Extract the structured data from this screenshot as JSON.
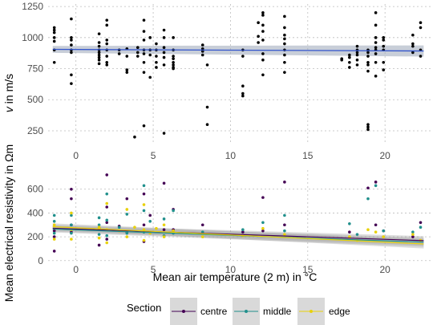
{
  "chart_data": [
    {
      "type": "scatter",
      "panel": "top",
      "ylabel_prefix": "v",
      "ylabel_suffix": " in m/s",
      "x_ticks": [
        0,
        5,
        10,
        15,
        20
      ],
      "y_ticks": [
        250,
        500,
        750,
        1000,
        1250
      ],
      "xlim": [
        -1.8,
        23.0
      ],
      "ylim": [
        140,
        1270
      ],
      "grid": true,
      "point_color": "#000000",
      "trend": {
        "x": [
          -1.5,
          22.5
        ],
        "y": [
          905,
          892
        ],
        "color": "#3355cc",
        "band_color": "#9aa6b8"
      },
      "points": [
        [
          -1.4,
          1080
        ],
        [
          -1.4,
          1060
        ],
        [
          -1.4,
          1040
        ],
        [
          -1.4,
          1000
        ],
        [
          -1.4,
          970
        ],
        [
          -1.4,
          900
        ],
        [
          -1.4,
          800
        ],
        [
          -0.3,
          1150
        ],
        [
          -0.3,
          1000
        ],
        [
          -0.3,
          980
        ],
        [
          -0.3,
          940
        ],
        [
          -0.3,
          900
        ],
        [
          -0.3,
          880
        ],
        [
          -0.3,
          700
        ],
        [
          -0.3,
          630
        ],
        [
          1.5,
          1030
        ],
        [
          1.5,
          960
        ],
        [
          1.5,
          930
        ],
        [
          1.5,
          900
        ],
        [
          1.5,
          880
        ],
        [
          1.5,
          860
        ],
        [
          1.5,
          840
        ],
        [
          1.5,
          820
        ],
        [
          1.5,
          790
        ],
        [
          2.0,
          1140
        ],
        [
          2.0,
          1100
        ],
        [
          2.0,
          980
        ],
        [
          2.0,
          950
        ],
        [
          2.0,
          900
        ],
        [
          2.0,
          850
        ],
        [
          2.0,
          800
        ],
        [
          2.0,
          780
        ],
        [
          2.8,
          900
        ],
        [
          2.8,
          870
        ],
        [
          3.3,
          910
        ],
        [
          3.3,
          850
        ],
        [
          3.3,
          740
        ],
        [
          3.3,
          720
        ],
        [
          3.8,
          200
        ],
        [
          4.0,
          920
        ],
        [
          4.0,
          880
        ],
        [
          4.0,
          850
        ],
        [
          4.4,
          1140
        ],
        [
          4.4,
          1050
        ],
        [
          4.4,
          980
        ],
        [
          4.4,
          900
        ],
        [
          4.4,
          870
        ],
        [
          4.4,
          800
        ],
        [
          4.4,
          720
        ],
        [
          4.4,
          290
        ],
        [
          4.8,
          1000
        ],
        [
          4.8,
          900
        ],
        [
          4.8,
          860
        ],
        [
          4.8,
          680
        ],
        [
          5.2,
          950
        ],
        [
          5.2,
          900
        ],
        [
          5.2,
          850
        ],
        [
          5.2,
          800
        ],
        [
          5.2,
          760
        ],
        [
          5.7,
          1060
        ],
        [
          5.7,
          1000
        ],
        [
          5.7,
          920
        ],
        [
          5.7,
          880
        ],
        [
          5.7,
          840
        ],
        [
          5.7,
          780
        ],
        [
          5.7,
          230
        ],
        [
          6.3,
          1000
        ],
        [
          6.3,
          900
        ],
        [
          6.3,
          850
        ],
        [
          6.3,
          830
        ],
        [
          6.3,
          800
        ],
        [
          6.3,
          780
        ],
        [
          6.3,
          760
        ],
        [
          6.3,
          750
        ],
        [
          8.2,
          940
        ],
        [
          8.2,
          910
        ],
        [
          8.2,
          890
        ],
        [
          8.2,
          860
        ],
        [
          8.5,
          780
        ],
        [
          8.5,
          440
        ],
        [
          8.5,
          300
        ],
        [
          10.8,
          900
        ],
        [
          10.8,
          850
        ],
        [
          10.8,
          610
        ],
        [
          10.8,
          550
        ],
        [
          10.8,
          530
        ],
        [
          11.8,
          1120
        ],
        [
          11.8,
          1010
        ],
        [
          11.8,
          960
        ],
        [
          12.1,
          1200
        ],
        [
          12.1,
          1180
        ],
        [
          12.1,
          1100
        ],
        [
          12.1,
          1050
        ],
        [
          12.1,
          980
        ],
        [
          12.1,
          870
        ],
        [
          12.1,
          820
        ],
        [
          12.1,
          700
        ],
        [
          13.5,
          1170
        ],
        [
          13.5,
          1080
        ],
        [
          13.5,
          1020
        ],
        [
          13.5,
          990
        ],
        [
          13.5,
          950
        ],
        [
          13.5,
          900
        ],
        [
          13.5,
          860
        ],
        [
          13.5,
          800
        ],
        [
          13.5,
          720
        ],
        [
          17.2,
          830
        ],
        [
          17.2,
          820
        ],
        [
          17.7,
          860
        ],
        [
          17.7,
          840
        ],
        [
          17.7,
          800
        ],
        [
          17.7,
          760
        ],
        [
          18.2,
          930
        ],
        [
          18.2,
          900
        ],
        [
          18.2,
          880
        ],
        [
          18.2,
          860
        ],
        [
          18.2,
          820
        ],
        [
          18.2,
          780
        ],
        [
          18.9,
          900
        ],
        [
          18.9,
          880
        ],
        [
          18.9,
          850
        ],
        [
          18.9,
          800
        ],
        [
          18.9,
          780
        ],
        [
          18.9,
          730
        ],
        [
          18.9,
          300
        ],
        [
          18.9,
          280
        ],
        [
          18.9,
          260
        ],
        [
          19.4,
          1200
        ],
        [
          19.4,
          1100
        ],
        [
          19.4,
          1000
        ],
        [
          19.4,
          960
        ],
        [
          19.4,
          920
        ],
        [
          19.4,
          900
        ],
        [
          19.4,
          870
        ],
        [
          19.4,
          800
        ],
        [
          19.4,
          690
        ],
        [
          19.9,
          1000
        ],
        [
          19.9,
          980
        ],
        [
          19.9,
          930
        ],
        [
          19.9,
          900
        ],
        [
          19.9,
          800
        ],
        [
          19.9,
          740
        ],
        [
          21.8,
          1020
        ],
        [
          21.8,
          950
        ],
        [
          21.8,
          930
        ],
        [
          21.8,
          880
        ],
        [
          22.3,
          1120
        ],
        [
          22.3,
          1080
        ],
        [
          22.3,
          900
        ],
        [
          22.3,
          850
        ]
      ]
    },
    {
      "type": "scatter",
      "panel": "bottom",
      "ylabel": "Mean electrical resistivity in Ωm",
      "xlabel": "Mean air temperature (2 m) in °C",
      "x_ticks": [
        0,
        5,
        10,
        15,
        20
      ],
      "y_ticks": [
        0,
        200,
        400,
        600
      ],
      "xlim": [
        -1.8,
        23.0
      ],
      "ylim": [
        -15,
        760
      ],
      "grid": true,
      "series": [
        {
          "name": "centre",
          "color": "#440154",
          "trend": {
            "x": [
              -1.5,
              22.5
            ],
            "y": [
              272,
              168
            ]
          },
          "points": [
            [
              -1.4,
              250
            ],
            [
              -1.4,
              200
            ],
            [
              -1.4,
              80
            ],
            [
              -0.3,
              600
            ],
            [
              -0.3,
              520
            ],
            [
              -0.3,
              300
            ],
            [
              -0.3,
              240
            ],
            [
              1.5,
              270
            ],
            [
              1.5,
              130
            ],
            [
              2.0,
              720
            ],
            [
              2.0,
              450
            ],
            [
              2.0,
              320
            ],
            [
              2.0,
              180
            ],
            [
              2.8,
              290
            ],
            [
              3.3,
              520
            ],
            [
              3.3,
              240
            ],
            [
              4.4,
              560
            ],
            [
              4.4,
              300
            ],
            [
              4.4,
              160
            ],
            [
              4.8,
              380
            ],
            [
              5.7,
              650
            ],
            [
              5.7,
              260
            ],
            [
              6.3,
              430
            ],
            [
              6.3,
              260
            ],
            [
              8.2,
              300
            ],
            [
              10.8,
              240
            ],
            [
              12.1,
              530
            ],
            [
              12.1,
              250
            ],
            [
              13.5,
              660
            ],
            [
              13.5,
              300
            ],
            [
              17.7,
              240
            ],
            [
              18.9,
              610
            ],
            [
              19.4,
              660
            ],
            [
              19.4,
              300
            ],
            [
              19.9,
              250
            ],
            [
              21.8,
              200
            ],
            [
              22.3,
              320
            ]
          ]
        },
        {
          "name": "middle",
          "color": "#21908c",
          "trend": {
            "x": [
              -1.5,
              22.5
            ],
            "y": [
              265,
              155
            ]
          },
          "points": [
            [
              -1.4,
              380
            ],
            [
              -1.4,
              330
            ],
            [
              -1.4,
              230
            ],
            [
              -0.3,
              380
            ],
            [
              -0.3,
              300
            ],
            [
              -0.3,
              230
            ],
            [
              1.5,
              360
            ],
            [
              1.5,
              300
            ],
            [
              1.5,
              220
            ],
            [
              2.0,
              560
            ],
            [
              2.0,
              340
            ],
            [
              2.0,
              210
            ],
            [
              2.8,
              280
            ],
            [
              3.3,
              390
            ],
            [
              3.3,
              230
            ],
            [
              4.4,
              630
            ],
            [
              4.4,
              420
            ],
            [
              4.4,
              240
            ],
            [
              4.8,
              330
            ],
            [
              5.7,
              350
            ],
            [
              5.7,
              210
            ],
            [
              6.3,
              420
            ],
            [
              6.3,
              230
            ],
            [
              8.2,
              240
            ],
            [
              10.8,
              260
            ],
            [
              12.1,
              320
            ],
            [
              13.5,
              380
            ],
            [
              13.5,
              250
            ],
            [
              17.7,
              310
            ],
            [
              18.2,
              220
            ],
            [
              18.9,
              520
            ],
            [
              19.4,
              630
            ],
            [
              19.9,
              250
            ],
            [
              21.8,
              240
            ],
            [
              22.3,
              280
            ]
          ]
        },
        {
          "name": "edge",
          "color": "#e8d10a",
          "trend": {
            "x": [
              -1.5,
              22.5
            ],
            "y": [
              285,
              140
            ]
          },
          "points": [
            [
              -1.4,
              300
            ],
            [
              -1.4,
              180
            ],
            [
              -0.3,
              400
            ],
            [
              -0.3,
              260
            ],
            [
              -0.3,
              180
            ],
            [
              1.5,
              280
            ],
            [
              1.5,
              190
            ],
            [
              2.0,
              480
            ],
            [
              2.0,
              260
            ],
            [
              2.0,
              150
            ],
            [
              2.8,
              250
            ],
            [
              3.3,
              430
            ],
            [
              3.3,
              200
            ],
            [
              3.8,
              280
            ],
            [
              4.4,
              470
            ],
            [
              4.4,
              260
            ],
            [
              4.4,
              170
            ],
            [
              4.8,
              230
            ],
            [
              5.2,
              270
            ],
            [
              5.7,
              300
            ],
            [
              5.7,
              200
            ],
            [
              6.3,
              250
            ],
            [
              8.2,
              200
            ],
            [
              10.8,
              210
            ],
            [
              12.1,
              270
            ],
            [
              13.5,
              220
            ],
            [
              17.7,
              200
            ],
            [
              18.2,
              170
            ],
            [
              18.9,
              260
            ],
            [
              19.4,
              240
            ],
            [
              19.9,
              200
            ],
            [
              21.8,
              220
            ],
            [
              22.3,
              170
            ]
          ]
        }
      ]
    }
  ],
  "legend": {
    "title": "Section",
    "items": [
      "centre",
      "middle",
      "edge"
    ]
  }
}
